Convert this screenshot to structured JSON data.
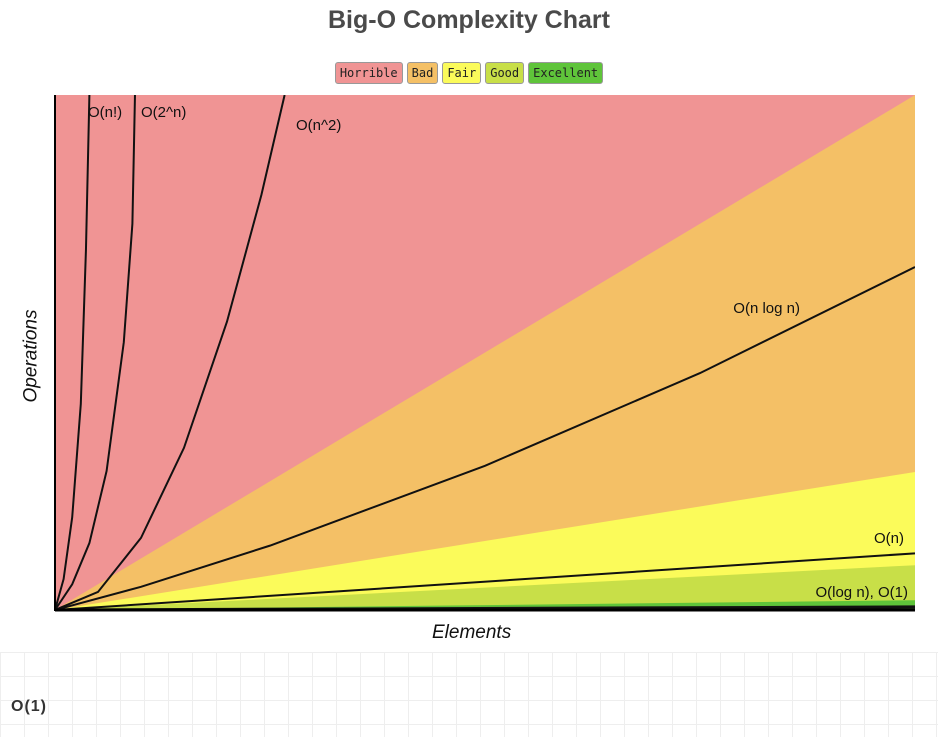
{
  "chart_data": {
    "type": "area",
    "title": "Big-O Complexity Chart",
    "xlabel": "Elements",
    "ylabel": "Operations",
    "xlim": [
      0,
      100
    ],
    "ylim": [
      0,
      100
    ],
    "grid": false,
    "legend_placement": "top",
    "legend": [
      {
        "label": "Horrible",
        "color": "#f09494"
      },
      {
        "label": "Bad",
        "color": "#f4c066"
      },
      {
        "label": "Fair",
        "color": "#fbfb5a"
      },
      {
        "label": "Good",
        "color": "#c8df48"
      },
      {
        "label": "Excellent",
        "color": "#5fc43a"
      }
    ],
    "regions": [
      {
        "name": "Horrible",
        "color": "#f09494",
        "upper_at_x100": 100
      },
      {
        "name": "Bad",
        "color": "#f4c066",
        "upper_at_x100": 100
      },
      {
        "name": "Fair",
        "color": "#fbfb5a",
        "upper_at_x100": 26.8
      },
      {
        "name": "Good",
        "color": "#c8df48",
        "upper_at_x100": 8.7
      },
      {
        "name": "Excellent",
        "color": "#5fc43a",
        "upper_at_x100": 1.9
      }
    ],
    "series": [
      {
        "name": "O(n!)",
        "points": [
          [
            0,
            0
          ],
          [
            1,
            6
          ],
          [
            2,
            18
          ],
          [
            3,
            40
          ],
          [
            3.6,
            70
          ],
          [
            4,
            100
          ]
        ]
      },
      {
        "name": "O(2^n)",
        "points": [
          [
            0,
            0
          ],
          [
            2,
            5
          ],
          [
            4,
            13
          ],
          [
            6,
            27
          ],
          [
            8,
            52
          ],
          [
            9,
            75
          ],
          [
            9.3,
            100
          ]
        ]
      },
      {
        "name": "O(n^2)",
        "points": [
          [
            0,
            0
          ],
          [
            5,
            3.5
          ],
          [
            10,
            14
          ],
          [
            15,
            31.5
          ],
          [
            20,
            56
          ],
          [
            24,
            80.6
          ],
          [
            26.7,
            100
          ]
        ]
      },
      {
        "name": "O(n log n)",
        "points": [
          [
            0,
            0
          ],
          [
            10,
            4.5
          ],
          [
            25,
            12.5
          ],
          [
            50,
            28
          ],
          [
            75,
            46
          ],
          [
            100,
            66.6
          ]
        ]
      },
      {
        "name": "O(n)",
        "points": [
          [
            0,
            0
          ],
          [
            100,
            11
          ]
        ]
      },
      {
        "name": "O(log n), O(1)",
        "points": [
          [
            0,
            0
          ],
          [
            100,
            0.6
          ]
        ]
      }
    ]
  },
  "footer": "O(1)"
}
